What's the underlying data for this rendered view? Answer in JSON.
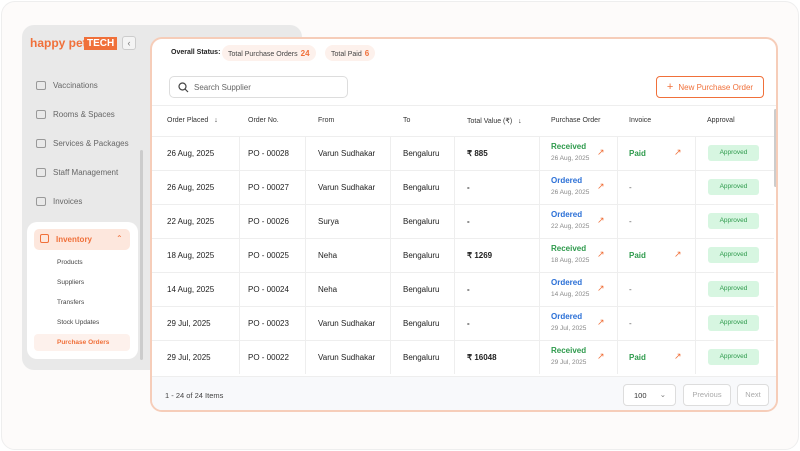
{
  "brand": {
    "name": "happy pet",
    "tag": "TECH"
  },
  "sidebar": {
    "items": [
      "Vaccinations",
      "Rooms & Spaces",
      "Services & Packages",
      "Staff Management",
      "Invoices"
    ],
    "active": "Inventory",
    "subitems": [
      "Products",
      "Suppliers",
      "Transfers",
      "Stock Updates",
      "Purchase Orders"
    ]
  },
  "status": {
    "label": "Overall Status:",
    "total_label": "Total Purchase Orders",
    "total": "24",
    "paid_label": "Total Paid",
    "paid": "6"
  },
  "search_placeholder": "Search Supplier",
  "new_button": "New Purchase Order",
  "table": {
    "columns": [
      "Order Placed",
      "Order No.",
      "From",
      "To",
      "Total Value (₹)",
      "Purchase Order",
      "Invoice",
      "Approval"
    ],
    "rows": [
      [
        "26 Aug, 2025",
        "PO - 00028",
        "Varun Sudhakar",
        "Bengaluru",
        "₹ 885",
        "Received",
        "26 Aug, 2025",
        "Paid",
        "Approved"
      ],
      [
        "26 Aug, 2025",
        "PO - 00027",
        "Varun Sudhakar",
        "Bengaluru",
        "-",
        "Ordered",
        "26 Aug, 2025",
        "-",
        "Approved"
      ],
      [
        "22 Aug, 2025",
        "PO - 00026",
        "Surya",
        "Bengaluru",
        "-",
        "Ordered",
        "22 Aug, 2025",
        "-",
        "Approved"
      ],
      [
        "18 Aug, 2025",
        "PO - 00025",
        "Neha",
        "Bengaluru",
        "₹ 1269",
        "Received",
        "18 Aug, 2025",
        "Paid",
        "Approved"
      ],
      [
        "14 Aug, 2025",
        "PO - 00024",
        "Neha",
        "Bengaluru",
        "-",
        "Ordered",
        "14 Aug, 2025",
        "-",
        "Approved"
      ],
      [
        "29 Jul, 2025",
        "PO - 00023",
        "Varun Sudhakar",
        "Bengaluru",
        "-",
        "Ordered",
        "29 Jul, 2025",
        "-",
        "Approved"
      ],
      [
        "29 Jul, 2025",
        "PO - 00022",
        "Varun Sudhakar",
        "Bengaluru",
        "₹ 16048",
        "Received",
        "29 Jul, 2025",
        "Paid",
        "Approved"
      ]
    ]
  },
  "footer": {
    "items": "1 - 24 of 24 Items",
    "page_size": "100",
    "previous": "Previous",
    "next": "Next"
  }
}
